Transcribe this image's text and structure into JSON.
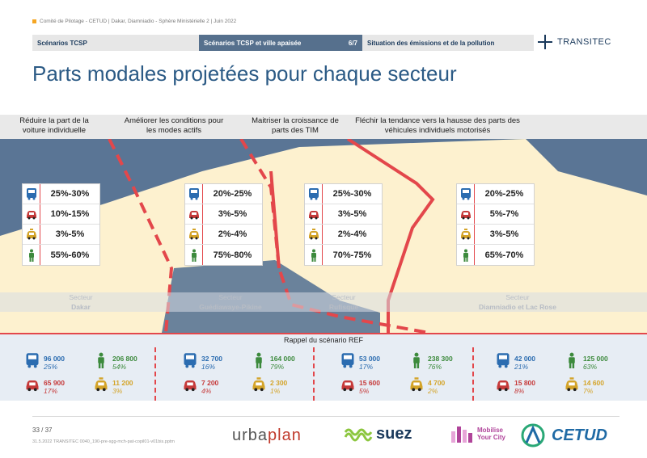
{
  "header": {
    "meta": "Comité de Pilotage - CETUD | Dakar, Diamniadio - Sphère Ministérielle 2 | Juin 2022",
    "tabs": [
      {
        "label": "Scénarios TCSP"
      },
      {
        "label": "Scénarios TCSP et ville apaisée",
        "page": "6/7"
      },
      {
        "label": "Situation des émissions et de la pollution"
      }
    ],
    "brand": "TRANSITEC"
  },
  "title": "Parts modales projetées pour chaque secteur",
  "objectives": [
    "Réduire la part de la voiture individuelle",
    "Améliorer les conditions pour les modes actifs",
    "Maitriser la croissance de parts des TIM",
    "Fléchir la tendance vers la hausse des parts des véhicules individuels motorisés"
  ],
  "sectors": [
    {
      "label": "Secteur",
      "name": "Dakar",
      "modes": {
        "bus": "25%-30%",
        "car": "10%-15%",
        "taxi": "3%-5%",
        "walk": "55%-60%"
      }
    },
    {
      "label": "Secteur",
      "name": "Guédiawaye-Pikine",
      "modes": {
        "bus": "20%-25%",
        "car": "3%-5%",
        "taxi": "2%-4%",
        "walk": "75%-80%"
      }
    },
    {
      "label": "Secteur",
      "name": "Rufisque",
      "modes": {
        "bus": "25%-30%",
        "car": "3%-5%",
        "taxi": "2%-4%",
        "walk": "70%-75%"
      }
    },
    {
      "label": "Secteur",
      "name": "Diamniadio et Lac Rose",
      "modes": {
        "bus": "20%-25%",
        "car": "5%-7%",
        "taxi": "3%-5%",
        "walk": "65%-70%"
      }
    }
  ],
  "ref": {
    "title": "Rappel du scénario REF",
    "sectors": [
      {
        "bus": {
          "value": "96 000",
          "pct": "25%"
        },
        "walk": {
          "value": "206 800",
          "pct": "54%"
        },
        "car": {
          "value": "65 900",
          "pct": "17%"
        },
        "taxi": {
          "value": "11 200",
          "pct": "3%"
        }
      },
      {
        "bus": {
          "value": "32 700",
          "pct": "16%"
        },
        "walk": {
          "value": "164 000",
          "pct": "79%"
        },
        "car": {
          "value": "7 200",
          "pct": "4%"
        },
        "taxi": {
          "value": "2 300",
          "pct": "1%"
        }
      },
      {
        "bus": {
          "value": "53 000",
          "pct": "17%"
        },
        "walk": {
          "value": "238 300",
          "pct": "76%"
        },
        "car": {
          "value": "15 600",
          "pct": "5%"
        },
        "taxi": {
          "value": "4 700",
          "pct": "2%"
        }
      },
      {
        "bus": {
          "value": "42 000",
          "pct": "21%"
        },
        "walk": {
          "value": "125 000",
          "pct": "63%"
        },
        "car": {
          "value": "15 800",
          "pct": "8%"
        },
        "taxi": {
          "value": "14 600",
          "pct": "7%"
        }
      }
    ]
  },
  "footer": {
    "page": "33 / 37",
    "note": "31.5.2022     TRANSITEC     0040_190-pre-sgg-mch-pat-copil01-v01bis.pptm",
    "logos": {
      "urbaplan_a": "urba",
      "urbaplan_b": "plan",
      "suez": "suez",
      "myc_line1": "Mobilise",
      "myc_line2": "Your City",
      "cetud": "CETUD"
    }
  },
  "colors": {
    "bus": "#2b6cb0",
    "walk": "#3c8a3c",
    "car": "#c63a3a",
    "taxi": "#d4a429",
    "accent": "#e3474b",
    "map_land": "#fdf1cf",
    "map_sea": "#5a7595"
  }
}
